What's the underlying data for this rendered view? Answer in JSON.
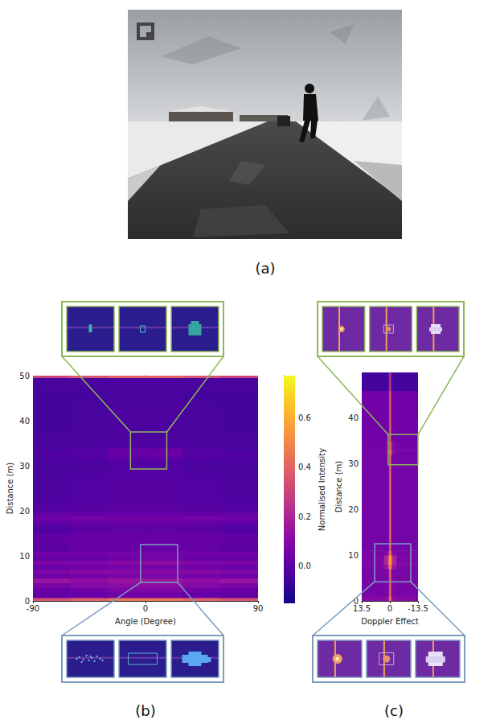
{
  "photo": {
    "label": "(a)"
  },
  "chart_data": [
    {
      "type": "heatmap",
      "label": "(b)",
      "xlabel": "Angle (Degree)",
      "ylabel": "Distance (m)",
      "xlim": [
        -90,
        90
      ],
      "ylim": [
        0,
        50
      ],
      "xticks": [
        -90,
        0,
        90
      ],
      "yticks": [
        0,
        10,
        20,
        30,
        40,
        50
      ],
      "grid": false,
      "cells": {
        "x_edges": [
          -90,
          -60,
          -30,
          0,
          30,
          60,
          90
        ],
        "y_edges": [
          0,
          0.7,
          2,
          3,
          4,
          5,
          6,
          7,
          8,
          9,
          10,
          11,
          13,
          15,
          17,
          18,
          19,
          20,
          22,
          25,
          28,
          31,
          32,
          33,
          34,
          35,
          38,
          41,
          44,
          47,
          49.5,
          50
        ],
        "values": [
          [
            0.35,
            0.4,
            0.45,
            0.45,
            0.4,
            0.35
          ],
          [
            0.02,
            0.03,
            0.05,
            0.05,
            0.03,
            0.02
          ],
          [
            0.03,
            0.05,
            0.08,
            0.08,
            0.05,
            0.03
          ],
          [
            0.08,
            0.1,
            0.12,
            0.12,
            0.1,
            0.08
          ],
          [
            0.15,
            0.12,
            0.15,
            0.15,
            0.12,
            0.15
          ],
          [
            0.05,
            0.06,
            0.08,
            0.08,
            0.06,
            0.05
          ],
          [
            0.08,
            0.1,
            0.1,
            0.1,
            0.1,
            0.08
          ],
          [
            0.03,
            0.05,
            0.06,
            0.06,
            0.05,
            0.03
          ],
          [
            0.08,
            0.08,
            0.1,
            0.12,
            0.08,
            0.08
          ],
          [
            0.02,
            0.03,
            0.05,
            0.06,
            0.03,
            0.02
          ],
          [
            0.05,
            0.05,
            0.06,
            0.06,
            0.05,
            0.05
          ],
          [
            0.0,
            0.02,
            0.03,
            0.03,
            0.02,
            0.0
          ],
          [
            0.02,
            0.03,
            0.03,
            0.03,
            0.03,
            0.02
          ],
          [
            -0.02,
            0.0,
            0.01,
            0.01,
            0.0,
            -0.02
          ],
          [
            0.02,
            0.03,
            0.04,
            0.04,
            0.03,
            0.02
          ],
          [
            0.05,
            0.06,
            0.06,
            0.06,
            0.06,
            0.05
          ],
          [
            0.01,
            0.02,
            0.03,
            0.03,
            0.02,
            0.01
          ],
          [
            -0.02,
            -0.01,
            0.0,
            0.0,
            -0.01,
            -0.02
          ],
          [
            -0.03,
            -0.02,
            -0.01,
            -0.01,
            -0.02,
            -0.03
          ],
          [
            -0.03,
            -0.02,
            -0.01,
            -0.01,
            -0.02,
            -0.03
          ],
          [
            -0.04,
            -0.03,
            -0.02,
            -0.02,
            -0.03,
            -0.04
          ],
          [
            -0.03,
            -0.02,
            0.0,
            0.0,
            -0.02,
            -0.03
          ],
          [
            -0.02,
            -0.01,
            0.03,
            0.04,
            -0.01,
            -0.02
          ],
          [
            -0.03,
            -0.02,
            0.02,
            0.03,
            -0.02,
            -0.03
          ],
          [
            -0.04,
            -0.03,
            -0.02,
            -0.02,
            -0.03,
            -0.04
          ],
          [
            -0.04,
            -0.04,
            -0.03,
            -0.03,
            -0.04,
            -0.04
          ],
          [
            -0.05,
            -0.04,
            -0.03,
            -0.03,
            -0.04,
            -0.05
          ],
          [
            -0.05,
            -0.04,
            -0.03,
            -0.03,
            -0.04,
            -0.05
          ],
          [
            -0.05,
            -0.05,
            -0.04,
            -0.04,
            -0.05,
            -0.05
          ],
          [
            -0.04,
            -0.04,
            -0.03,
            -0.03,
            -0.04,
            -0.04
          ],
          [
            0.3,
            0.35,
            0.4,
            0.4,
            0.35,
            0.3
          ]
        ]
      },
      "colorbar": {
        "label": "Normalised Intensity",
        "range": [
          -0.15,
          0.77
        ],
        "ticks": [
          {
            "value": 0,
            "label": "0.0"
          },
          {
            "value": 0.2,
            "label": "0.2"
          },
          {
            "value": 0.4,
            "label": "0.4"
          },
          {
            "value": 0.6,
            "label": "0.6"
          }
        ]
      },
      "zoom_boxes": [
        {
          "xlim": [
            -12,
            17
          ],
          "ylim": [
            29.3,
            37.5
          ],
          "color": "#8db85a"
        },
        {
          "xlim": [
            -4,
            25.7
          ],
          "ylim": [
            4.1,
            12.5
          ],
          "color": "#7d9cc0"
        }
      ]
    },
    {
      "type": "heatmap",
      "label": "(c)",
      "xlabel": "Doppler Effect",
      "ylabel": "Distance (m)",
      "xlim": [
        13.5,
        -13.5
      ],
      "ylim": [
        0,
        50
      ],
      "xticks": [
        13.5,
        0,
        -13.5
      ],
      "yticks": [
        0,
        10,
        20,
        30,
        40
      ],
      "grid": false,
      "cells": {
        "x_edges": [
          -13.5,
          -3,
          -1,
          -0.4,
          0.4,
          1,
          3,
          13.5
        ],
        "y_edges": [
          0,
          1,
          7,
          8,
          10,
          11,
          32,
          33,
          35,
          46,
          50
        ],
        "values": [
          [
            0.1,
            0.12,
            0.2,
            0.5,
            0.2,
            0.12,
            0.1
          ],
          [
            0.07,
            0.08,
            0.1,
            0.45,
            0.1,
            0.08,
            0.07
          ],
          [
            0.08,
            0.15,
            0.3,
            0.55,
            0.3,
            0.15,
            0.08
          ],
          [
            0.08,
            0.2,
            0.4,
            0.6,
            0.4,
            0.2,
            0.08
          ],
          [
            0.07,
            0.1,
            0.2,
            0.5,
            0.2,
            0.1,
            0.07
          ],
          [
            0.06,
            0.06,
            0.07,
            0.45,
            0.07,
            0.06,
            0.06
          ],
          [
            0.06,
            0.1,
            0.25,
            0.5,
            0.2,
            0.08,
            0.06
          ],
          [
            0.06,
            0.09,
            0.2,
            0.45,
            0.15,
            0.07,
            0.06
          ],
          [
            0.05,
            0.05,
            0.06,
            0.42,
            0.06,
            0.05,
            0.05
          ],
          [
            -0.05,
            -0.05,
            -0.03,
            0.3,
            -0.03,
            -0.05,
            -0.05
          ]
        ]
      },
      "zoom_boxes": [
        {
          "xlim": [
            -13.5,
            0.8
          ],
          "ylim": [
            29.8,
            36.4
          ],
          "color": "#8db85a"
        },
        {
          "xlim": [
            -10,
            7.3
          ],
          "ylim": [
            4.2,
            12.5
          ],
          "color": "#7d9cc0"
        }
      ]
    }
  ]
}
